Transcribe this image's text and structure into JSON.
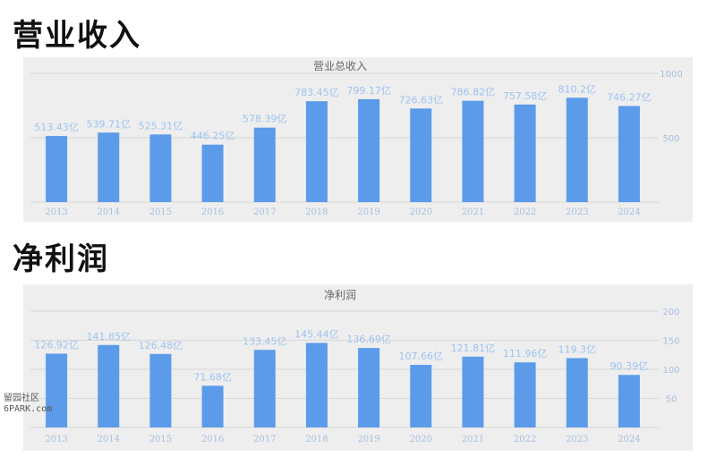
{
  "sections": [
    {
      "heading": "营业收入"
    },
    {
      "heading": "净利润"
    }
  ],
  "watermark": {
    "line1": "留园社区",
    "line2": "6PARK.com"
  },
  "colors": {
    "bar": "#5b9bea",
    "label": "#9ec3f0",
    "tick": "#a7bfdf",
    "grid": "#d6d6d6",
    "panel": "#eeeeee"
  },
  "chart_data": [
    {
      "type": "bar",
      "title": "营业总收入",
      "categories": [
        "2013",
        "2014",
        "2015",
        "2016",
        "2017",
        "2018",
        "2019",
        "2020",
        "2021",
        "2022",
        "2023",
        "2024"
      ],
      "values": [
        513.43,
        539.71,
        525.31,
        446.25,
        578.39,
        783.45,
        799.17,
        726.63,
        786.82,
        757.58,
        810.2,
        746.27
      ],
      "data_labels": [
        "513.43亿",
        "539.71亿",
        "525.31亿",
        "446.25亿",
        "578.39亿",
        "783.45亿",
        "799.17亿",
        "726.63亿",
        "786.82亿",
        "757.58亿",
        "810.2亿",
        "746.27亿"
      ],
      "ylim": [
        0,
        1000
      ],
      "yticks": [
        500,
        1000
      ],
      "y_axis_side": "right",
      "grid": true,
      "xlabel": "",
      "ylabel": ""
    },
    {
      "type": "bar",
      "title": "净利润",
      "categories": [
        "2013",
        "2014",
        "2015",
        "2016",
        "2017",
        "2018",
        "2019",
        "2020",
        "2021",
        "2022",
        "2023",
        "2024"
      ],
      "values": [
        126.92,
        141.85,
        126.48,
        71.68,
        133.45,
        145.44,
        136.69,
        107.66,
        121.81,
        111.96,
        119.3,
        90.39
      ],
      "data_labels": [
        "126.92亿",
        "141.85亿",
        "126.48亿",
        "71.68亿",
        "133.45亿",
        "145.44亿",
        "136.69亿",
        "107.66亿",
        "121.81亿",
        "111.96亿",
        "119.3亿",
        "90.39亿"
      ],
      "ylim": [
        0,
        200
      ],
      "yticks": [
        50,
        100,
        150,
        200
      ],
      "y_axis_side": "right",
      "grid": true,
      "xlabel": "",
      "ylabel": ""
    }
  ]
}
